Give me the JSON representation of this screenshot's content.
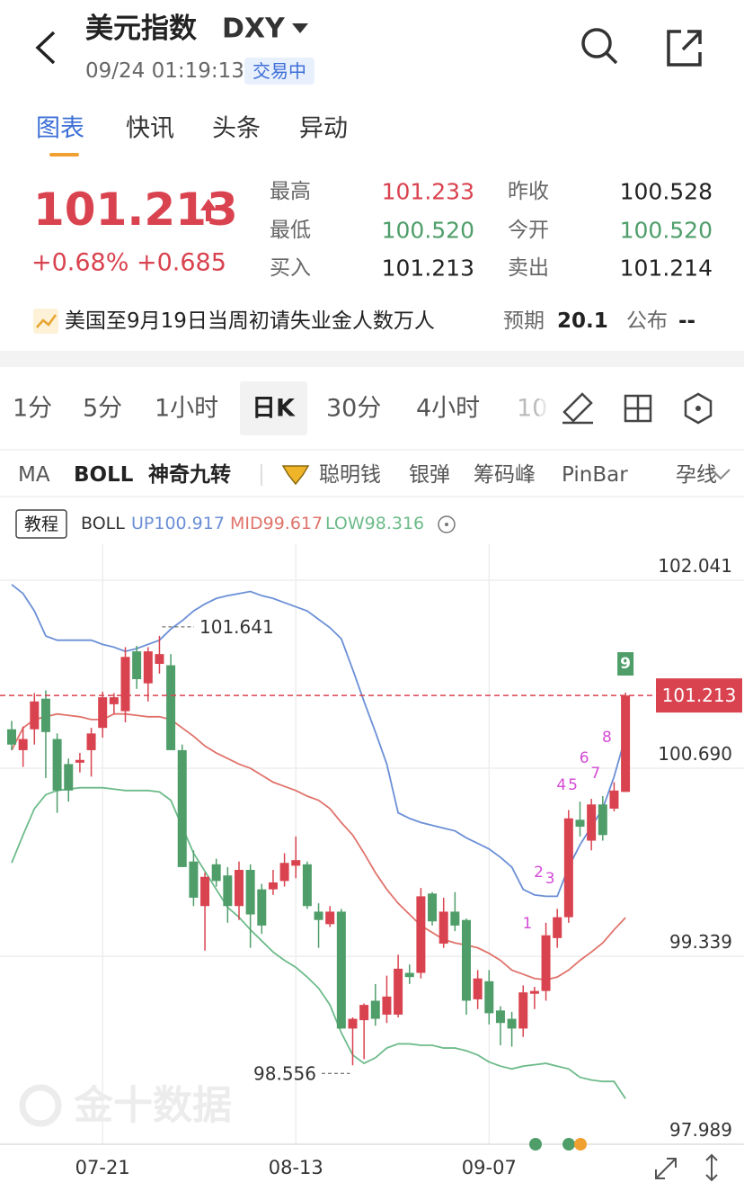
{
  "header": {
    "title": "美元指数",
    "code": "DXY",
    "datetime": "09/24 01:19:13",
    "status": "交易中"
  },
  "tabs": [
    "图表",
    "快讯",
    "头条",
    "异动"
  ],
  "quote": {
    "price": "101.213",
    "change_pct": "+0.68%",
    "change": "+0.685",
    "stats": [
      [
        "最高",
        "101.233"
      ],
      [
        "昨收",
        "100.528"
      ],
      [
        "最低",
        "100.520"
      ],
      [
        "今开",
        "100.520"
      ],
      [
        "买入",
        "101.213"
      ],
      [
        "卖出",
        "101.214"
      ]
    ]
  },
  "news": {
    "text": "美国至9月19日当周初请失业金人数万人",
    "expected_label": "预期",
    "expected": "20.1",
    "publish_label": "公布",
    "publish": "--"
  },
  "periods": [
    "1分",
    "5分",
    "1小时",
    "日K",
    "30分",
    "4小时",
    "10"
  ],
  "indicators": [
    "MA",
    "BOLL",
    "神奇九转",
    "聪明钱",
    "银弹",
    "筹码峰",
    "PinBar",
    "孕线"
  ],
  "chart_tag": "教程",
  "watermark": "金十数据",
  "chart_data": {
    "type": "candlestick",
    "indicator": "BOLL",
    "categories": [
      null,
      null,
      null,
      null,
      null,
      null,
      null,
      null,
      "07-21",
      null,
      null,
      null,
      null,
      null,
      null,
      null,
      null,
      null,
      null,
      null,
      null,
      null,
      null,
      null,
      null,
      "08-13",
      null,
      null,
      null,
      null,
      null,
      null,
      null,
      null,
      null,
      null,
      null,
      null,
      null,
      null,
      null,
      null,
      "09-07",
      null,
      null,
      null,
      null,
      null,
      null,
      null,
      null,
      null,
      null,
      null,
      null
    ],
    "open": [
      100.97,
      100.82,
      100.97,
      101.19,
      100.9,
      100.72,
      100.73,
      100.82,
      100.98,
      101.15,
      101.1,
      101.53,
      101.3,
      101.44,
      101.43,
      100.82,
      100.02,
      99.7,
      100.0,
      99.92,
      99.7,
      99.96,
      99.82,
      99.82,
      99.88,
      99.99,
      100.0,
      99.66,
      99.57,
      99.66,
      98.82,
      98.88,
      99.02,
      98.92,
      98.92,
      99.22,
      99.22,
      99.79,
      99.43,
      99.66,
      99.6,
      99.03,
      99.16,
      98.95,
      98.89,
      98.82,
      99.07,
      99.09,
      99.47,
      99.62,
      100.32,
      100.17,
      100.43,
      100.4,
      100.52
    ],
    "high": [
      101.03,
      100.99,
      101.23,
      101.25,
      100.94,
      100.76,
      100.8,
      100.98,
      101.24,
      101.23,
      101.56,
      101.57,
      101.56,
      101.641,
      101.51,
      100.86,
      100.1,
      99.94,
      100.04,
      99.98,
      100.02,
      100.0,
      99.86,
      99.96,
      100.08,
      100.2,
      100.02,
      99.72,
      99.7,
      99.68,
      98.9,
      99.0,
      99.14,
      99.2,
      99.35,
      99.28,
      99.83,
      99.8,
      99.76,
      99.8,
      99.61,
      99.24,
      99.24,
      98.98,
      98.94,
      99.13,
      99.12,
      99.58,
      99.68,
      100.39,
      100.45,
      100.47,
      100.49,
      100.59,
      101.233
    ],
    "low": [
      100.82,
      100.7,
      100.86,
      100.62,
      100.37,
      100.45,
      100.66,
      100.63,
      100.91,
      101.08,
      101.02,
      101.26,
      101.17,
      101.37,
      100.82,
      99.98,
      99.7,
      99.38,
      99.84,
      99.58,
      99.6,
      99.4,
      99.5,
      99.78,
      99.84,
      99.9,
      99.68,
      99.4,
      99.55,
      98.82,
      98.556,
      98.6,
      98.84,
      98.86,
      98.9,
      99.14,
      99.18,
      99.56,
      99.4,
      99.52,
      98.92,
      98.96,
      98.85,
      98.7,
      98.69,
      98.76,
      98.96,
      99.02,
      99.4,
      99.58,
      100.2,
      100.1,
      100.17,
      100.38,
      100.52
    ],
    "close": [
      100.86,
      100.9,
      101.17,
      100.95,
      100.53,
      100.53,
      100.75,
      100.94,
      101.2,
      101.2,
      101.49,
      101.33,
      101.53,
      101.51,
      100.82,
      99.98,
      99.76,
      99.91,
      99.88,
      99.7,
      99.96,
      99.64,
      99.56,
      99.87,
      100.01,
      100.03,
      99.7,
      99.6,
      99.66,
      98.82,
      98.89,
      98.99,
      98.89,
      99.05,
      99.25,
      99.19,
      99.77,
      99.59,
      99.66,
      99.56,
      99.02,
      99.18,
      98.93,
      98.86,
      98.82,
      99.08,
      99.09,
      99.49,
      99.62,
      100.33,
      100.27,
      100.43,
      100.21,
      100.53,
      101.213
    ],
    "up_color": "#d9434f",
    "down_color": "#4f9e6a",
    "bands": [
      {
        "name": "UP100.917",
        "color": "#6b8fd6",
        "values": [
          102.01,
          101.945,
          101.82,
          101.64,
          101.61,
          101.61,
          101.61,
          101.61,
          101.58,
          101.56,
          101.53,
          101.55,
          101.58,
          101.61,
          101.69,
          101.75,
          101.82,
          101.87,
          101.91,
          101.93,
          101.945,
          101.96,
          101.93,
          101.91,
          101.88,
          101.85,
          101.82,
          101.76,
          101.7,
          101.62,
          101.4,
          101.17,
          100.95,
          100.72,
          100.37,
          100.33,
          100.3,
          100.28,
          100.26,
          100.24,
          100.19,
          100.15,
          100.11,
          100.05,
          99.98,
          99.82,
          99.78,
          99.77,
          99.77,
          99.98,
          100.14,
          100.27,
          100.4,
          100.63,
          100.917
        ]
      },
      {
        "name": "MID99.617",
        "color": "#e0736b",
        "values": [
          100.82,
          100.98,
          101.04,
          101.06,
          101.08,
          101.07,
          101.06,
          101.04,
          101.04,
          101.08,
          101.08,
          101.07,
          101.06,
          101.06,
          101.04,
          100.98,
          100.92,
          100.85,
          100.8,
          100.76,
          100.72,
          100.69,
          100.64,
          100.59,
          100.56,
          100.53,
          100.49,
          100.46,
          100.4,
          100.3,
          100.21,
          100.08,
          99.94,
          99.82,
          99.72,
          99.64,
          99.56,
          99.51,
          99.46,
          99.435,
          99.42,
          99.4,
          99.36,
          99.31,
          99.24,
          99.21,
          99.18,
          99.17,
          99.19,
          99.24,
          99.31,
          99.37,
          99.435,
          99.53,
          99.617
        ]
      },
      {
        "name": "LOW98.316",
        "color": "#6dbb8a",
        "values": [
          100.01,
          100.21,
          100.4,
          100.5,
          100.53,
          100.54,
          100.55,
          100.55,
          100.55,
          100.54,
          100.53,
          100.53,
          100.53,
          100.52,
          100.46,
          100.27,
          100.08,
          99.95,
          99.82,
          99.69,
          99.62,
          99.53,
          99.45,
          99.37,
          99.31,
          99.26,
          99.19,
          99.11,
          98.99,
          98.79,
          98.63,
          98.57,
          98.61,
          98.68,
          98.71,
          98.71,
          98.7,
          98.7,
          98.68,
          98.68,
          98.66,
          98.63,
          98.58,
          98.55,
          98.53,
          98.55,
          98.56,
          98.57,
          98.55,
          98.53,
          98.47,
          98.45,
          98.44,
          98.44,
          98.316
        ]
      }
    ],
    "td_sequence": [
      null,
      null,
      null,
      null,
      null,
      null,
      null,
      null,
      null,
      null,
      null,
      null,
      null,
      null,
      null,
      null,
      null,
      null,
      null,
      null,
      null,
      null,
      null,
      null,
      null,
      null,
      null,
      null,
      null,
      null,
      null,
      null,
      null,
      null,
      null,
      null,
      null,
      null,
      null,
      null,
      null,
      null,
      null,
      null,
      null,
      null,
      1,
      2,
      3,
      4,
      5,
      6,
      7,
      8,
      9
    ],
    "high_label": 101.641,
    "low_label": 98.556,
    "last_price": 101.213,
    "ylim": [
      97.989,
      102.041
    ],
    "yticks": [
      102.041,
      {
        "value": 100.69,
        "label": "100.690"
      },
      99.339,
      97.989
    ],
    "grid": true
  }
}
